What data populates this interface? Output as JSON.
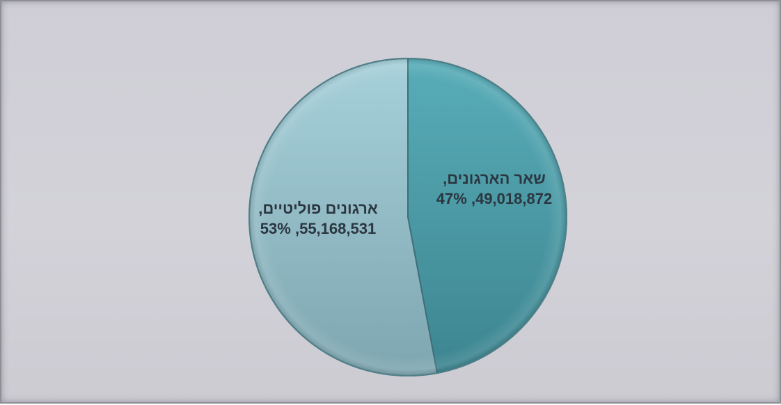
{
  "chart_data": {
    "type": "pie",
    "title": "",
    "slices": [
      {
        "name": "שאר הארגונים,",
        "value": 49018872,
        "value_label": "49,018,872",
        "percent_label": "47%",
        "color": "#4a9aa6"
      },
      {
        "name": "ארגונים פוליטיים,",
        "value": 55168531,
        "value_label": "55,168,531",
        "percent_label": "53%",
        "color": "#93bfca"
      }
    ],
    "legend": "none"
  }
}
